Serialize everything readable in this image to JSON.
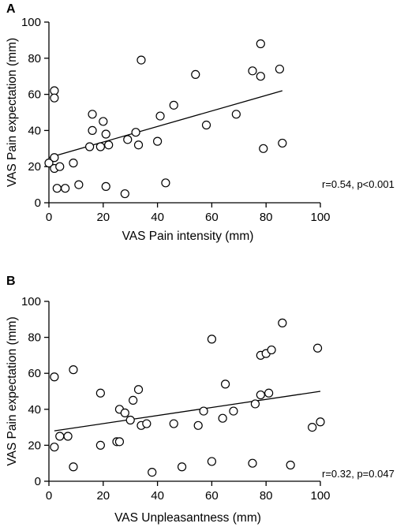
{
  "chart_data": [
    {
      "type": "scatter",
      "panel_label": "A",
      "xlabel": "VAS Pain intensity (mm)",
      "ylabel": "VAS Pain expectation (mm)",
      "xlim": [
        0,
        100
      ],
      "ylim": [
        0,
        100
      ],
      "xticks": [
        0,
        20,
        40,
        60,
        80,
        100
      ],
      "yticks": [
        0,
        20,
        40,
        60,
        80,
        100
      ],
      "annotation": "r=0.54, p<0.001",
      "grid": false,
      "fit_line": {
        "x": [
          0,
          86
        ],
        "y": [
          25,
          62
        ]
      },
      "points": [
        {
          "x": 0,
          "y": 22
        },
        {
          "x": 2,
          "y": 62
        },
        {
          "x": 2,
          "y": 58
        },
        {
          "x": 2,
          "y": 25
        },
        {
          "x": 2,
          "y": 19
        },
        {
          "x": 3,
          "y": 8
        },
        {
          "x": 4,
          "y": 20
        },
        {
          "x": 6,
          "y": 8
        },
        {
          "x": 9,
          "y": 22
        },
        {
          "x": 11,
          "y": 10
        },
        {
          "x": 15,
          "y": 31
        },
        {
          "x": 16,
          "y": 49
        },
        {
          "x": 16,
          "y": 40
        },
        {
          "x": 19,
          "y": 31
        },
        {
          "x": 20,
          "y": 45
        },
        {
          "x": 21,
          "y": 38
        },
        {
          "x": 21,
          "y": 9
        },
        {
          "x": 22,
          "y": 32
        },
        {
          "x": 28,
          "y": 5
        },
        {
          "x": 29,
          "y": 35
        },
        {
          "x": 32,
          "y": 39
        },
        {
          "x": 33,
          "y": 32
        },
        {
          "x": 34,
          "y": 79
        },
        {
          "x": 40,
          "y": 34
        },
        {
          "x": 41,
          "y": 48
        },
        {
          "x": 43,
          "y": 11
        },
        {
          "x": 46,
          "y": 54
        },
        {
          "x": 54,
          "y": 71
        },
        {
          "x": 58,
          "y": 43
        },
        {
          "x": 69,
          "y": 49
        },
        {
          "x": 75,
          "y": 73
        },
        {
          "x": 78,
          "y": 88
        },
        {
          "x": 78,
          "y": 70
        },
        {
          "x": 79,
          "y": 30
        },
        {
          "x": 85,
          "y": 74
        },
        {
          "x": 86,
          "y": 33
        }
      ]
    },
    {
      "type": "scatter",
      "panel_label": "B",
      "xlabel": "VAS Unpleasantness (mm)",
      "ylabel": "VAS Pain expectation (mm)",
      "xlim": [
        0,
        100
      ],
      "ylim": [
        0,
        100
      ],
      "xticks": [
        0,
        20,
        40,
        60,
        80,
        100
      ],
      "yticks": [
        0,
        20,
        40,
        60,
        80,
        100
      ],
      "annotation": "r=0.32, p=0.047",
      "grid": false,
      "fit_line": {
        "x": [
          2,
          100
        ],
        "y": [
          28,
          50
        ]
      },
      "points": [
        {
          "x": 2,
          "y": 58
        },
        {
          "x": 2,
          "y": 19
        },
        {
          "x": 4,
          "y": 25
        },
        {
          "x": 7,
          "y": 25
        },
        {
          "x": 9,
          "y": 62
        },
        {
          "x": 9,
          "y": 8
        },
        {
          "x": 19,
          "y": 49
        },
        {
          "x": 19,
          "y": 20
        },
        {
          "x": 25,
          "y": 22
        },
        {
          "x": 26,
          "y": 40
        },
        {
          "x": 26,
          "y": 22
        },
        {
          "x": 28,
          "y": 38
        },
        {
          "x": 30,
          "y": 34
        },
        {
          "x": 31,
          "y": 45
        },
        {
          "x": 33,
          "y": 51
        },
        {
          "x": 34,
          "y": 31
        },
        {
          "x": 36,
          "y": 32
        },
        {
          "x": 38,
          "y": 5
        },
        {
          "x": 46,
          "y": 32
        },
        {
          "x": 49,
          "y": 8
        },
        {
          "x": 55,
          "y": 31
        },
        {
          "x": 57,
          "y": 39
        },
        {
          "x": 60,
          "y": 79
        },
        {
          "x": 60,
          "y": 11
        },
        {
          "x": 64,
          "y": 35
        },
        {
          "x": 65,
          "y": 54
        },
        {
          "x": 68,
          "y": 39
        },
        {
          "x": 75,
          "y": 10
        },
        {
          "x": 76,
          "y": 43
        },
        {
          "x": 78,
          "y": 70
        },
        {
          "x": 78,
          "y": 48
        },
        {
          "x": 80,
          "y": 71
        },
        {
          "x": 81,
          "y": 49
        },
        {
          "x": 82,
          "y": 73
        },
        {
          "x": 86,
          "y": 88
        },
        {
          "x": 89,
          "y": 9
        },
        {
          "x": 97,
          "y": 30
        },
        {
          "x": 99,
          "y": 74
        },
        {
          "x": 100,
          "y": 33
        }
      ]
    }
  ]
}
